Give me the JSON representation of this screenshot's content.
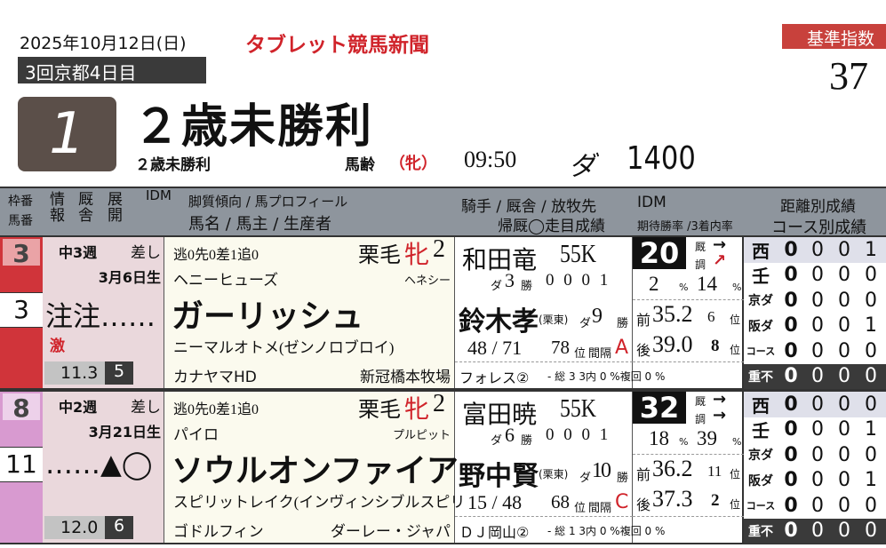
{
  "header": {
    "date": "2025年10月12日(日)",
    "paper": "タブレット競馬新聞",
    "meeting": "3回京都4日目",
    "race_no": "1",
    "race_name": "２歳未勝利",
    "race_sub": "２歳未勝利",
    "age_label": "馬齢",
    "sex_cond": "（牝）",
    "time": "09:50",
    "surface": "ダ",
    "distance": "1400",
    "index_label": "基準指数",
    "index_value": "37"
  },
  "columns": {
    "waku": "枠番",
    "umaban": "馬番",
    "info": "情報",
    "stable": "厩舎",
    "tenkai": "展開",
    "idm": "IDM",
    "h1": "脚質傾向 / 馬プロフィール",
    "h2": "馬名 / 馬主 / 生産者",
    "j1": "騎手 / 厩舎 / 放牧先",
    "j2": "帰厩◯走目成績",
    "idm_h": "IDM",
    "idm_h2": "期待勝率 /3着内率",
    "s1": "距離別成績",
    "s2": "コース別成績"
  },
  "colors": {
    "frame3": "#d0343a",
    "frame8": "#d89ad0",
    "row_bg_left": "#ead8dc",
    "row_bg_mid": "#fbfaee",
    "accent": "#d0232a"
  },
  "horses": [
    {
      "frame": "3",
      "num": "3",
      "interval": "中3週",
      "style": "差し",
      "birth": "3月6日生",
      "marks": "注注……",
      "mark2": "激",
      "odds": "11.3",
      "pop": "5",
      "legs": "逃0先0差1追0",
      "coat": "栗毛",
      "sex": "牝",
      "age": "2",
      "sire": "ヘニーヒューズ",
      "broodsire_ref": "ヘネシー",
      "name": "ガーリッシュ",
      "dam": "ニーマルオトメ(ゼンノロブロイ)",
      "owner": "カナヤマHD",
      "breeder": "新冠橋本牧場",
      "jockey": "和田竜",
      "weight": "55K",
      "j_surface": "ダ",
      "j_wins": "3",
      "j_wins_label": "勝",
      "j_record": "0 0 0 1",
      "trainer": "鈴木孝",
      "trainer_loc": "(栗東)",
      "t_surface": "ダ",
      "t_wins": "9",
      "t_wins_label": "勝",
      "rank_frac": "48 / 71",
      "rank": "78",
      "rank_label": "位",
      "interval_label": "間隔",
      "interval_grade": "A",
      "farm": "フォレス②",
      "farm_stats": "- 総 3 3内 0 %複回 0 %",
      "idm": "20",
      "kyu_label": "厩",
      "cho_label": "調",
      "kyu_arrow": "→",
      "cho_arrow": "↗",
      "win_rate": "2",
      "top3_rate": "14",
      "pct": "%",
      "front_label": "前",
      "front": "35.2",
      "front_rank": "6",
      "back_label": "後",
      "back": "39.0",
      "back_rank": "8",
      "pos": "位",
      "stats": [
        {
          "label": "西",
          "v": [
            "0",
            "0",
            "0",
            "1"
          ]
        },
        {
          "label": "壬",
          "v": [
            "0",
            "0",
            "0",
            "0"
          ]
        },
        {
          "label": "京ダ",
          "v": [
            "0",
            "0",
            "0",
            "0"
          ]
        },
        {
          "label": "阪ダ",
          "v": [
            "0",
            "0",
            "0",
            "1"
          ]
        },
        {
          "label": "コース",
          "v": [
            "0",
            "0",
            "0",
            "0"
          ]
        },
        {
          "label": "重不",
          "v": [
            "0",
            "0",
            "0",
            "0"
          ]
        }
      ]
    },
    {
      "frame": "8",
      "num": "11",
      "interval": "中2週",
      "style": "差し",
      "birth": "3月21日生",
      "marks": "……▲◯",
      "mark2": "",
      "odds": "12.0",
      "pop": "6",
      "legs": "逃0先0差1追0",
      "coat": "栗毛",
      "sex": "牝",
      "age": "2",
      "sire": "パイロ",
      "broodsire_ref": "プルピット",
      "name": "ソウルオンファイア",
      "dam": "スピリットレイク(インヴィンシブルスピリ",
      "owner": "ゴドルフィン",
      "breeder": "ダーレー・ジャパ",
      "jockey": "富田暁",
      "weight": "55K",
      "j_surface": "ダ",
      "j_wins": "6",
      "j_wins_label": "勝",
      "j_record": "0 0 0 1",
      "trainer": "野中賢",
      "trainer_loc": "(栗東)",
      "t_surface": "ダ",
      "t_wins": "10",
      "t_wins_label": "勝",
      "rank_frac": "15 / 48",
      "rank": "68",
      "rank_label": "位",
      "interval_label": "間隔",
      "interval_grade": "C",
      "farm": "ＤＪ岡山②",
      "farm_stats": "- 総 1 3内 0 %複回 0 %",
      "idm": "32",
      "kyu_label": "厩",
      "cho_label": "調",
      "kyu_arrow": "→",
      "cho_arrow": "→",
      "win_rate": "18",
      "top3_rate": "39",
      "pct": "%",
      "front_label": "前",
      "front": "36.2",
      "front_rank": "11",
      "back_label": "後",
      "back": "37.3",
      "back_rank": "2",
      "pos": "位",
      "stats": [
        {
          "label": "西",
          "v": [
            "0",
            "0",
            "0",
            "0"
          ]
        },
        {
          "label": "壬",
          "v": [
            "0",
            "0",
            "0",
            "1"
          ]
        },
        {
          "label": "京ダ",
          "v": [
            "0",
            "0",
            "0",
            "0"
          ]
        },
        {
          "label": "阪ダ",
          "v": [
            "0",
            "0",
            "0",
            "1"
          ]
        },
        {
          "label": "コース",
          "v": [
            "0",
            "0",
            "0",
            "0"
          ]
        },
        {
          "label": "重不",
          "v": [
            "0",
            "0",
            "0",
            "0"
          ]
        }
      ]
    }
  ]
}
